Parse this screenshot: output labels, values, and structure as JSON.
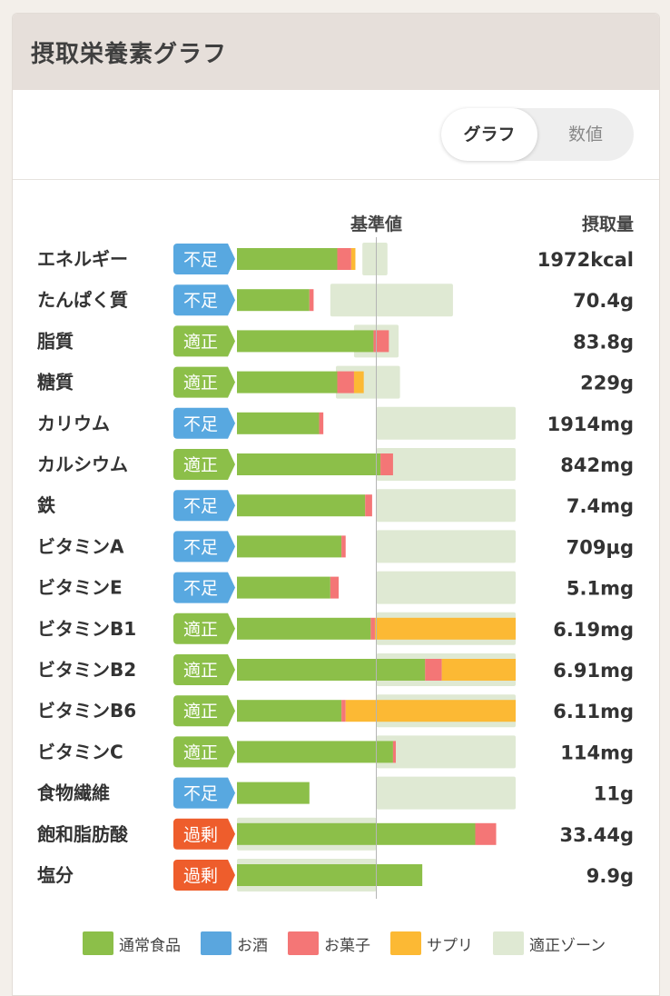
{
  "card": {
    "title": "摂取栄養素グラフ"
  },
  "toggle": {
    "graph_label": "グラフ",
    "value_label": "数値",
    "selected": "graph"
  },
  "colors": {
    "food": "#8cbf49",
    "alcohol": "#5aa6de",
    "snack": "#f47676",
    "supplement": "#fcb934",
    "zone": "#dfe9d3",
    "status_insufficient": "#58a8e0",
    "status_adequate": "#8cbf49",
    "status_excess": "#ee5d2c"
  },
  "chart_data": {
    "type": "bar",
    "orientation": "horizontal",
    "stacked": true,
    "reference_label": "基準値",
    "value_header": "摂取量",
    "legend": [
      {
        "key": "food",
        "label": "通常食品"
      },
      {
        "key": "alcohol",
        "label": "お酒"
      },
      {
        "key": "snack",
        "label": "お菓子"
      },
      {
        "key": "supplement",
        "label": "サプリ"
      },
      {
        "key": "zone",
        "label": "適正ゾーン"
      }
    ],
    "scale_note": "values expressed as percent of reference value (基準値 = 100)",
    "xlim": [
      0,
      200
    ],
    "nutrients": [
      {
        "name": "エネルギー",
        "status": "不足",
        "status_type": "insufficient",
        "food": 72,
        "snack": 10,
        "supplement": 3,
        "zone": [
          90,
          108
        ],
        "value": "1972kcal"
      },
      {
        "name": "たんぱく質",
        "status": "不足",
        "status_type": "insufficient",
        "food": 52,
        "snack": 3,
        "supplement": 0,
        "zone": [
          67,
          155
        ],
        "value": "70.4g"
      },
      {
        "name": "脂質",
        "status": "適正",
        "status_type": "adequate",
        "food": 98,
        "snack": 11,
        "supplement": 0,
        "zone": [
          84,
          116
        ],
        "value": "83.8g"
      },
      {
        "name": "糖質",
        "status": "適正",
        "status_type": "adequate",
        "food": 72,
        "snack": 12,
        "supplement": 7,
        "zone": [
          71,
          117
        ],
        "value": "229g"
      },
      {
        "name": "カリウム",
        "status": "不足",
        "status_type": "insufficient",
        "food": 59,
        "snack": 3,
        "supplement": 0,
        "zone": [
          100,
          200
        ],
        "value": "1914mg"
      },
      {
        "name": "カルシウム",
        "status": "適正",
        "status_type": "adequate",
        "food": 103,
        "snack": 9,
        "supplement": 0,
        "zone": [
          100,
          200
        ],
        "value": "842mg"
      },
      {
        "name": "鉄",
        "status": "不足",
        "status_type": "insufficient",
        "food": 92,
        "snack": 5,
        "supplement": 0,
        "zone": [
          100,
          200
        ],
        "value": "7.4mg"
      },
      {
        "name": "ビタミンA",
        "status": "不足",
        "status_type": "insufficient",
        "food": 75,
        "snack": 3,
        "supplement": 0,
        "zone": [
          100,
          200
        ],
        "value": "709µg"
      },
      {
        "name": "ビタミンE",
        "status": "不足",
        "status_type": "insufficient",
        "food": 67,
        "snack": 6,
        "supplement": 0,
        "zone": [
          100,
          200
        ],
        "value": "5.1mg"
      },
      {
        "name": "ビタミンB1",
        "status": "適正",
        "status_type": "adequate",
        "food": 96,
        "snack": 3,
        "supplement": 101,
        "zone": [
          100,
          200
        ],
        "value": "6.19mg"
      },
      {
        "name": "ビタミンB2",
        "status": "適正",
        "status_type": "adequate",
        "food": 135,
        "snack": 12,
        "supplement": 53,
        "zone": [
          100,
          200
        ],
        "value": "6.91mg"
      },
      {
        "name": "ビタミンB6",
        "status": "適正",
        "status_type": "adequate",
        "food": 75,
        "snack": 3,
        "supplement": 122,
        "zone": [
          100,
          200
        ],
        "value": "6.11mg"
      },
      {
        "name": "ビタミンC",
        "status": "適正",
        "status_type": "adequate",
        "food": 112,
        "snack": 2,
        "supplement": 0,
        "zone": [
          100,
          200
        ],
        "value": "114mg"
      },
      {
        "name": "食物繊維",
        "status": "不足",
        "status_type": "insufficient",
        "food": 52,
        "snack": 0,
        "supplement": 0,
        "zone": [
          100,
          200
        ],
        "value": "11g"
      },
      {
        "name": "飽和脂肪酸",
        "status": "過剰",
        "status_type": "excess",
        "food": 171,
        "snack": 15,
        "supplement": 0,
        "zone": [
          0,
          100
        ],
        "value": "33.44g"
      },
      {
        "name": "塩分",
        "status": "過剰",
        "status_type": "excess",
        "food": 133,
        "snack": 0,
        "supplement": 0,
        "zone": [
          0,
          100
        ],
        "value": "9.9g"
      }
    ]
  }
}
